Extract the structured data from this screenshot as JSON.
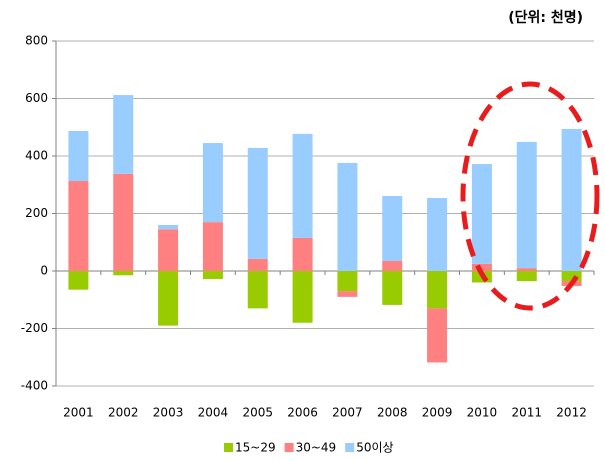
{
  "chart_data": {
    "type": "stacked-bar",
    "subtitle": "(단위: 천명)",
    "categories": [
      "2001",
      "2002",
      "2003",
      "2004",
      "2005",
      "2006",
      "2007",
      "2008",
      "2009",
      "2010",
      "2011",
      "2012"
    ],
    "series": [
      {
        "name": "15~29",
        "color": "#99cc00",
        "values": [
          -65,
          -15,
          -190,
          -28,
          -130,
          -180,
          -70,
          -118,
          -130,
          -40,
          -35,
          -35
        ]
      },
      {
        "name": "30~49",
        "color": "#ff8080",
        "values": [
          313,
          338,
          145,
          170,
          42,
          115,
          -20,
          35,
          -188,
          25,
          10,
          -17
        ]
      },
      {
        "name": "50이상",
        "color": "#99ccff",
        "values": [
          174,
          274,
          15,
          275,
          386,
          362,
          376,
          226,
          254,
          347,
          439,
          494
        ]
      }
    ],
    "ylim": [
      -400,
      800
    ],
    "yticks": [
      -400,
      -200,
      0,
      200,
      400,
      600,
      800
    ],
    "grid": true
  }
}
